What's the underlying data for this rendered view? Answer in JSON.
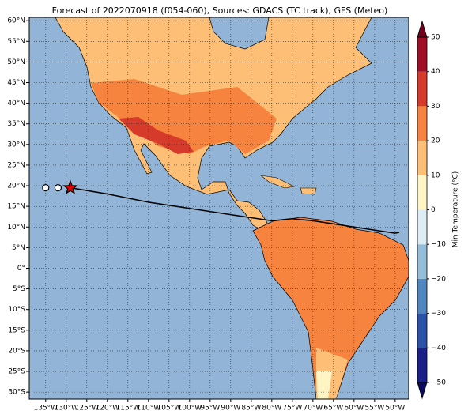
{
  "chart_data": {
    "type": "map",
    "title": "Forecast of 2022070918 (f054-060), Sources: GDACS (TC track), GFS (Meteo)",
    "xlim": [
      -139.0,
      -46.7
    ],
    "ylim": [
      -31.7,
      60.8
    ],
    "grid": true,
    "xticks": [
      {
        "value": -135,
        "label": "135°W"
      },
      {
        "value": -130,
        "label": "130°W"
      },
      {
        "value": -125,
        "label": "125°W"
      },
      {
        "value": -120,
        "label": "120°W"
      },
      {
        "value": -115,
        "label": "115°W"
      },
      {
        "value": -110,
        "label": "110°W"
      },
      {
        "value": -105,
        "label": "105°W"
      },
      {
        "value": -100,
        "label": "100°W"
      },
      {
        "value": -95,
        "label": "95°W"
      },
      {
        "value": -90,
        "label": "90°W"
      },
      {
        "value": -85,
        "label": "85°W"
      },
      {
        "value": -80,
        "label": "80°W"
      },
      {
        "value": -75,
        "label": "75°W"
      },
      {
        "value": -70,
        "label": "70°W"
      },
      {
        "value": -65,
        "label": "65°W"
      },
      {
        "value": -60,
        "label": "60°W"
      },
      {
        "value": -55,
        "label": "55°W"
      },
      {
        "value": -50,
        "label": "50°W"
      }
    ],
    "yticks": [
      {
        "value": 60,
        "label": "60°N"
      },
      {
        "value": 55,
        "label": "55°N"
      },
      {
        "value": 50,
        "label": "50°N"
      },
      {
        "value": 45,
        "label": "45°N"
      },
      {
        "value": 40,
        "label": "40°N"
      },
      {
        "value": 35,
        "label": "35°N"
      },
      {
        "value": 30,
        "label": "30°N"
      },
      {
        "value": 25,
        "label": "25°N"
      },
      {
        "value": 20,
        "label": "20°N"
      },
      {
        "value": 15,
        "label": "15°N"
      },
      {
        "value": 10,
        "label": "10°N"
      },
      {
        "value": 5,
        "label": "5°N"
      },
      {
        "value": 0,
        "label": "0°"
      },
      {
        "value": -5,
        "label": "5°S"
      },
      {
        "value": -10,
        "label": "10°S"
      },
      {
        "value": -15,
        "label": "15°S"
      },
      {
        "value": -20,
        "label": "20°S"
      },
      {
        "value": -25,
        "label": "25°S"
      },
      {
        "value": -30,
        "label": "30°S"
      }
    ],
    "track": {
      "color": "#000000",
      "lon": [
        -129,
        -120,
        -110,
        -100,
        -90,
        -80,
        -75,
        -70,
        -60,
        -50,
        -49
      ],
      "lat": [
        19.5,
        18,
        16,
        14.5,
        13,
        11.5,
        12,
        11.5,
        10,
        8.5,
        8.7
      ]
    },
    "positions": {
      "lon": [
        -135,
        -132,
        -129
      ],
      "lat": [
        19.5,
        19.5,
        19.5
      ],
      "markers": [
        "circle",
        "circle",
        "star"
      ]
    },
    "colorbar": {
      "label": "Min Temperature (°C)",
      "lim": [
        -50,
        50
      ],
      "ticks": [
        {
          "value": -50,
          "label": "−50"
        },
        {
          "value": -40,
          "label": "−40"
        },
        {
          "value": -30,
          "label": "−30"
        },
        {
          "value": -20,
          "label": "−20"
        },
        {
          "value": -10,
          "label": "−10"
        },
        0,
        10,
        20,
        30,
        40,
        50
      ],
      "colors": [
        "#1a1f8a",
        "#2a52a8",
        "#4f86bf",
        "#93bdd9",
        "#dcecf2",
        "#fff4c4",
        "#fdbf76",
        "#f6843f",
        "#d53a2a",
        "#a10f26"
      ],
      "under_color": "#0c0a5c",
      "over_color": "#70001c"
    }
  }
}
